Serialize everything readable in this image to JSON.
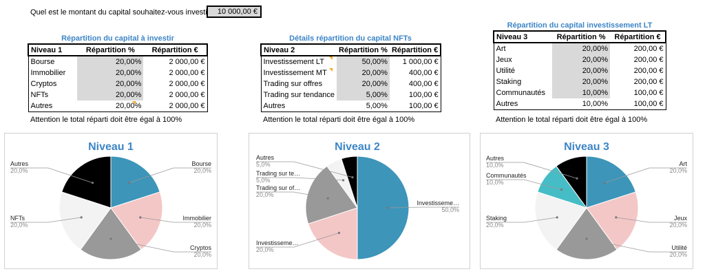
{
  "question": {
    "label": "Quel est le montant du capital souhaitez-vous investir ?",
    "value": "10 000,00 €"
  },
  "tables": [
    {
      "title": "Répartition du capital à investir",
      "headers": [
        "Niveau 1",
        "Répartition %",
        "Répartition €"
      ],
      "rows": [
        [
          "Bourse",
          "20,00%",
          "2 000,00 €"
        ],
        [
          "Immobilier",
          "20,00%",
          "2 000,00 €"
        ],
        [
          "Cryptos",
          "20,00%",
          "2 000,00 €"
        ],
        [
          "NFTs",
          "20,00%",
          "2 000,00 €"
        ],
        [
          "Autres",
          "20,00%",
          "2 000,00 €"
        ]
      ],
      "note": "Attention le total réparti doit être égal à 100%"
    },
    {
      "title": "Détails répartition du capital NFTs",
      "headers": [
        "Niveau 2",
        "Répartition %",
        "Répartition €"
      ],
      "rows": [
        [
          "Investissement LT",
          "50,00%",
          "1 000,00 €"
        ],
        [
          "Investissement MT",
          "20,00%",
          "400,00 €"
        ],
        [
          "Trading sur offres",
          "20,00%",
          "400,00 €"
        ],
        [
          "Trading sur tendance",
          "5,00%",
          "100,00 €"
        ],
        [
          "Autres",
          "5,00%",
          "100,00 €"
        ]
      ],
      "note": "Attention le total réparti doit être égal à 100%"
    },
    {
      "title": "Répartition du capital investissement LT",
      "headers": [
        "Niveau 3",
        "Répartition %",
        "Répartition €"
      ],
      "rows": [
        [
          "Art",
          "20,00%",
          "200,00 €"
        ],
        [
          "Jeux",
          "20,00%",
          "200,00 €"
        ],
        [
          "Utilité",
          "20,00%",
          "200,00 €"
        ],
        [
          "Staking",
          "20,00%",
          "200,00 €"
        ],
        [
          "Communautés",
          "10,00%",
          "100,00 €"
        ],
        [
          "Autres",
          "10,00%",
          "100,00 €"
        ]
      ],
      "note": "Attention le total réparti doit être égal à 100%"
    }
  ],
  "chart_data": [
    {
      "type": "pie",
      "title": "Niveau 1",
      "slices": [
        {
          "name": "Bourse",
          "value": 20.0,
          "label": "20,0%",
          "color": "#3d95b9"
        },
        {
          "name": "Immobilier",
          "value": 20.0,
          "label": "20,0%",
          "color": "#f4c7c7"
        },
        {
          "name": "Cryptos",
          "value": 20.0,
          "label": "20,0%",
          "color": "#999999"
        },
        {
          "name": "NFTs",
          "value": 20.0,
          "label": "20,0%",
          "color": "#f3f3f3"
        },
        {
          "name": "Autres",
          "value": 20.0,
          "label": "20,0%",
          "color": "#000000"
        }
      ]
    },
    {
      "type": "pie",
      "title": "Niveau 2",
      "slices": [
        {
          "name": "Investisseme…",
          "value": 50.0,
          "label": "50,0%",
          "color": "#3d95b9"
        },
        {
          "name": "Investisseme…",
          "value": 20.0,
          "label": "20,0%",
          "color": "#f4c7c7"
        },
        {
          "name": "Trading sur of…",
          "value": 20.0,
          "label": "20,0%",
          "color": "#999999"
        },
        {
          "name": "Trading sur te…",
          "value": 5.0,
          "label": "5,0%",
          "color": "#f3f3f3"
        },
        {
          "name": "Autres",
          "value": 5.0,
          "label": "5,0%",
          "color": "#000000"
        }
      ]
    },
    {
      "type": "pie",
      "title": "Niveau 3",
      "slices": [
        {
          "name": "Art",
          "value": 20.0,
          "label": "20,0%",
          "color": "#3d95b9"
        },
        {
          "name": "Jeux",
          "value": 20.0,
          "label": "20,0%",
          "color": "#f4c7c7"
        },
        {
          "name": "Utilité",
          "value": 20.0,
          "label": "20,0%",
          "color": "#999999"
        },
        {
          "name": "Staking",
          "value": 20.0,
          "label": "20,0%",
          "color": "#f3f3f3"
        },
        {
          "name": "Communautés",
          "value": 10.0,
          "label": "10,0%",
          "color": "#46bdc6"
        },
        {
          "name": "Autres",
          "value": 10.0,
          "label": "10,0%",
          "color": "#000000"
        }
      ]
    }
  ]
}
